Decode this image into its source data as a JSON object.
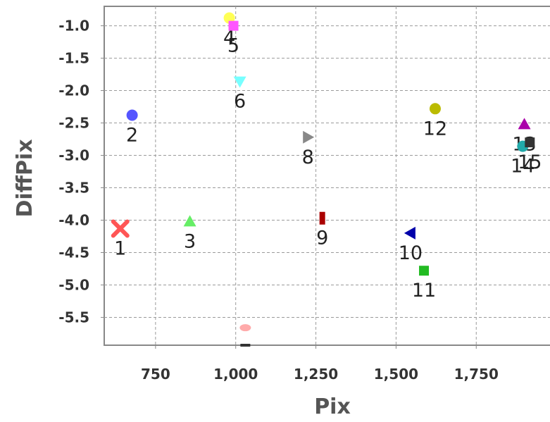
{
  "chart_data": {
    "type": "scatter",
    "xlabel": "Pix",
    "ylabel": "DiffPix",
    "xlim": [
      590,
      1980
    ],
    "ylim": [
      -5.93,
      -0.7
    ],
    "grid": true,
    "x_ticks": [
      750,
      1000,
      1250,
      1500,
      1750
    ],
    "x_tick_labels": [
      "750",
      "1,000",
      "1,250",
      "1,500",
      "1,750"
    ],
    "y_ticks": [
      -1.0,
      -1.5,
      -2.0,
      -2.5,
      -3.0,
      -3.5,
      -4.0,
      -4.5,
      -5.0,
      -5.5
    ],
    "y_tick_labels": [
      "-1.0",
      "-1.5",
      "-2.0",
      "-2.5",
      "-3.0",
      "-3.5",
      "-4.0",
      "-4.5",
      "-5.0",
      "-5.5"
    ],
    "points": [
      {
        "label": "1",
        "x": 640,
        "y": -4.13,
        "shape": "x",
        "color": "#ff5555"
      },
      {
        "label": "2",
        "x": 677,
        "y": -2.38,
        "shape": "circle",
        "color": "#5555ff"
      },
      {
        "label": "3",
        "x": 857,
        "y": -4.02,
        "shape": "triangle-up",
        "color": "#66ee66"
      },
      {
        "label": "4",
        "x": 980,
        "y": -0.88,
        "shape": "circle",
        "color": "#ffff55"
      },
      {
        "label": "5",
        "x": 993,
        "y": -1.0,
        "shape": "square",
        "color": "#ff55ff"
      },
      {
        "label": "6",
        "x": 1013,
        "y": -1.86,
        "shape": "triangle-down",
        "color": "#77ffff"
      },
      {
        "label": "",
        "x": 1030,
        "y": -5.66,
        "shape": "ellipse",
        "color": "#ffaaaa"
      },
      {
        "label": "",
        "x": 1030,
        "y": -5.93,
        "shape": "small-rect",
        "color": "#333333"
      },
      {
        "label": "8",
        "x": 1225,
        "y": -2.72,
        "shape": "triangle-right",
        "color": "#888888"
      },
      {
        "label": "9",
        "x": 1270,
        "y": -3.97,
        "shape": "tall-rect",
        "color": "#aa0000"
      },
      {
        "label": "10",
        "x": 1545,
        "y": -4.2,
        "shape": "triangle-left",
        "color": "#0000aa"
      },
      {
        "label": "11",
        "x": 1587,
        "y": -4.78,
        "shape": "square",
        "color": "#22bb22"
      },
      {
        "label": "12",
        "x": 1622,
        "y": -2.28,
        "shape": "circle",
        "color": "#bbbb00"
      },
      {
        "label": "13",
        "x": 1900,
        "y": -2.52,
        "shape": "triangle-up",
        "color": "#aa00aa"
      },
      {
        "label": "14",
        "x": 1895,
        "y": -2.86,
        "shape": "circle",
        "color": "#22aaaa"
      },
      {
        "label": "15",
        "x": 1917,
        "y": -2.8,
        "shape": "square",
        "color": "#333333"
      }
    ]
  }
}
